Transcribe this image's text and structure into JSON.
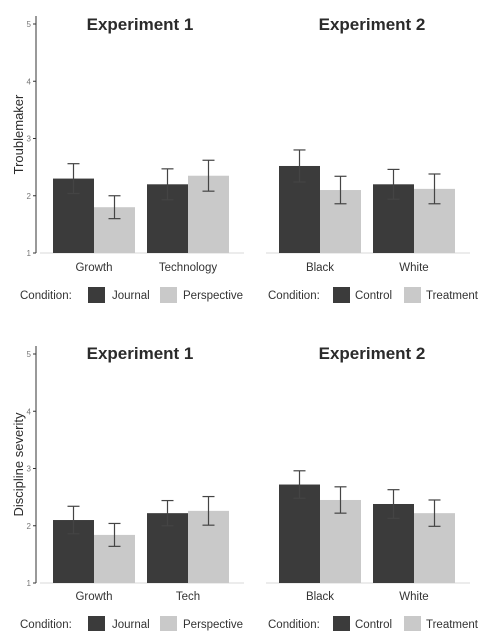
{
  "chart_data": [
    {
      "type": "bar",
      "ylabel": "Troublemaker",
      "ylim": [
        1,
        5
      ],
      "yticks": [
        1,
        2,
        3,
        4,
        5
      ],
      "grid": false,
      "panels": [
        {
          "title": "Experiment 1",
          "categories": [
            "Growth",
            "Technology"
          ],
          "legend_title": "Condition:",
          "series": [
            {
              "name": "Journal",
              "color": "#3b3b3b",
              "values": [
                2.3,
                2.2
              ],
              "error": [
                0.26,
                0.27
              ]
            },
            {
              "name": "Perspective",
              "color": "#c9c9c9",
              "values": [
                1.8,
                2.35
              ],
              "error": [
                0.2,
                0.27
              ]
            }
          ]
        },
        {
          "title": "Experiment 2",
          "categories": [
            "Black",
            "White"
          ],
          "legend_title": "Condition:",
          "series": [
            {
              "name": "Control",
              "color": "#3b3b3b",
              "values": [
                2.52,
                2.2
              ],
              "error": [
                0.28,
                0.26
              ]
            },
            {
              "name": "Treatment",
              "color": "#c9c9c9",
              "values": [
                2.1,
                2.12
              ],
              "error": [
                0.24,
                0.26
              ]
            }
          ]
        }
      ]
    },
    {
      "type": "bar",
      "ylabel": "Discipline severity",
      "ylim": [
        1,
        5
      ],
      "yticks": [
        1,
        2,
        3,
        4,
        5
      ],
      "grid": false,
      "panels": [
        {
          "title": "Experiment 1",
          "categories": [
            "Growth",
            "Tech"
          ],
          "legend_title": "Condition:",
          "series": [
            {
              "name": "Journal",
              "color": "#3b3b3b",
              "values": [
                2.1,
                2.22
              ],
              "error": [
                0.24,
                0.22
              ]
            },
            {
              "name": "Perspective",
              "color": "#c9c9c9",
              "values": [
                1.84,
                2.26
              ],
              "error": [
                0.2,
                0.25
              ]
            }
          ]
        },
        {
          "title": "Experiment 2",
          "categories": [
            "Black",
            "White"
          ],
          "legend_title": "Condition:",
          "series": [
            {
              "name": "Control",
              "color": "#3b3b3b",
              "values": [
                2.72,
                2.38
              ],
              "error": [
                0.24,
                0.25
              ]
            },
            {
              "name": "Treatment",
              "color": "#c9c9c9",
              "values": [
                2.45,
                2.22
              ],
              "error": [
                0.23,
                0.23
              ]
            }
          ]
        }
      ]
    }
  ]
}
